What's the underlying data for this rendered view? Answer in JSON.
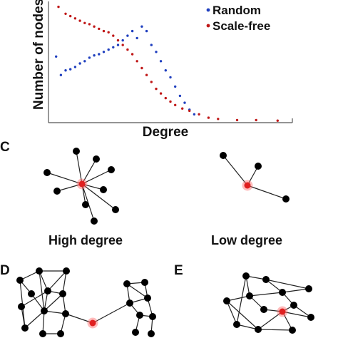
{
  "chart_data": {
    "type": "scatter",
    "xlabel": "Degree",
    "ylabel": "Number of nodes",
    "grid": false,
    "legend_position": "top-right",
    "series": [
      {
        "name": "Random",
        "color": "#1f3fbf",
        "points": [
          [
            0.02,
            0.56
          ],
          [
            0.04,
            0.4
          ],
          [
            0.06,
            0.44
          ],
          [
            0.08,
            0.45
          ],
          [
            0.1,
            0.47
          ],
          [
            0.12,
            0.5
          ],
          [
            0.14,
            0.52
          ],
          [
            0.16,
            0.55
          ],
          [
            0.18,
            0.57
          ],
          [
            0.2,
            0.58
          ],
          [
            0.22,
            0.6
          ],
          [
            0.24,
            0.62
          ],
          [
            0.26,
            0.64
          ],
          [
            0.28,
            0.66
          ],
          [
            0.3,
            0.7
          ],
          [
            0.32,
            0.74
          ],
          [
            0.34,
            0.78
          ],
          [
            0.36,
            0.72
          ],
          [
            0.38,
            0.82
          ],
          [
            0.4,
            0.78
          ],
          [
            0.42,
            0.66
          ],
          [
            0.44,
            0.6
          ],
          [
            0.46,
            0.52
          ],
          [
            0.48,
            0.44
          ],
          [
            0.5,
            0.38
          ],
          [
            0.52,
            0.3
          ],
          [
            0.54,
            0.22
          ],
          [
            0.56,
            0.16
          ],
          [
            0.58,
            0.1
          ],
          [
            0.6,
            0.06
          ]
        ]
      },
      {
        "name": "Scale-free",
        "color": "#c01818",
        "points": [
          [
            0.03,
            0.99
          ],
          [
            0.06,
            0.93
          ],
          [
            0.08,
            0.91
          ],
          [
            0.1,
            0.89
          ],
          [
            0.12,
            0.87
          ],
          [
            0.14,
            0.85
          ],
          [
            0.16,
            0.84
          ],
          [
            0.18,
            0.82
          ],
          [
            0.2,
            0.8
          ],
          [
            0.22,
            0.78
          ],
          [
            0.24,
            0.77
          ],
          [
            0.26,
            0.74
          ],
          [
            0.28,
            0.7
          ],
          [
            0.3,
            0.66
          ],
          [
            0.32,
            0.62
          ],
          [
            0.34,
            0.58
          ],
          [
            0.36,
            0.52
          ],
          [
            0.38,
            0.46
          ],
          [
            0.4,
            0.4
          ],
          [
            0.42,
            0.34
          ],
          [
            0.44,
            0.28
          ],
          [
            0.46,
            0.24
          ],
          [
            0.48,
            0.2
          ],
          [
            0.5,
            0.17
          ],
          [
            0.52,
            0.14
          ],
          [
            0.55,
            0.11
          ],
          [
            0.58,
            0.09
          ],
          [
            0.62,
            0.06
          ],
          [
            0.66,
            0.03
          ],
          [
            0.7,
            0.02
          ],
          [
            0.78,
            0.01
          ],
          [
            0.86,
            0.01
          ],
          [
            0.95,
            0.005
          ]
        ]
      }
    ]
  },
  "panels": {
    "c": {
      "letter": "C",
      "left_caption": "High degree",
      "right_caption": "Low degree"
    },
    "d": {
      "letter": "D"
    },
    "e": {
      "letter": "E"
    }
  }
}
